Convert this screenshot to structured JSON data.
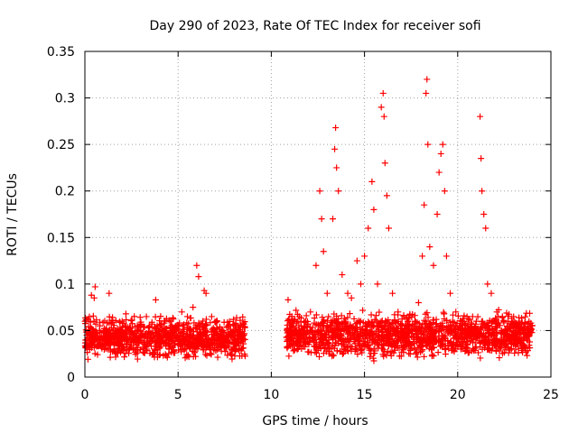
{
  "colors": {
    "series": "#ff0000",
    "grid": "#a0a0a0",
    "axis": "#000000"
  },
  "chart_data": {
    "type": "scatter",
    "title": "Day 290 of 2023, Rate Of TEC Index for receiver sofi",
    "xlabel": "GPS time / hours",
    "ylabel": "ROTI / TECUs",
    "xlim": [
      0,
      25
    ],
    "ylim": [
      0,
      0.35
    ],
    "xticks": [
      0,
      5,
      10,
      15,
      20,
      25
    ],
    "xtick_labels": [
      "0",
      "5",
      "10",
      "15",
      "20",
      "25"
    ],
    "yticks": [
      0,
      0.05,
      0.1,
      0.15,
      0.2,
      0.25,
      0.3,
      0.35
    ],
    "ytick_labels": [
      "0",
      "0.05",
      "0.1",
      "0.15",
      "0.2",
      "0.25",
      "0.3",
      "0.35"
    ],
    "grid": true,
    "marker": "+",
    "series": [
      {
        "name": "ROTI",
        "points": [
          [
            0.1,
            0.045
          ],
          [
            0.3,
            0.06
          ],
          [
            0.35,
            0.088
          ],
          [
            0.5,
            0.085
          ],
          [
            0.55,
            0.097
          ],
          [
            0.8,
            0.055
          ],
          [
            1.0,
            0.042
          ],
          [
            1.3,
            0.09
          ],
          [
            1.5,
            0.05
          ],
          [
            1.8,
            0.035
          ],
          [
            2.0,
            0.06
          ],
          [
            2.2,
            0.068
          ],
          [
            2.5,
            0.04
          ],
          [
            2.8,
            0.05
          ],
          [
            3.0,
            0.055
          ],
          [
            3.3,
            0.065
          ],
          [
            3.5,
            0.045
          ],
          [
            3.8,
            0.083
          ],
          [
            4.0,
            0.05
          ],
          [
            4.3,
            0.06
          ],
          [
            4.6,
            0.045
          ],
          [
            4.9,
            0.055
          ],
          [
            5.2,
            0.07
          ],
          [
            5.5,
            0.065
          ],
          [
            5.8,
            0.075
          ],
          [
            6.0,
            0.12
          ],
          [
            6.1,
            0.108
          ],
          [
            6.4,
            0.093
          ],
          [
            6.5,
            0.09
          ],
          [
            6.8,
            0.065
          ],
          [
            7.1,
            0.06
          ],
          [
            7.4,
            0.05
          ],
          [
            7.7,
            0.055
          ],
          [
            8.0,
            0.05
          ],
          [
            8.3,
            0.045
          ],
          [
            8.5,
            0.04
          ],
          [
            10.9,
            0.083
          ],
          [
            11.2,
            0.06
          ],
          [
            11.5,
            0.065
          ],
          [
            11.8,
            0.05
          ],
          [
            12.1,
            0.07
          ],
          [
            12.4,
            0.12
          ],
          [
            12.6,
            0.2
          ],
          [
            12.7,
            0.17
          ],
          [
            12.8,
            0.135
          ],
          [
            13.0,
            0.09
          ],
          [
            13.3,
            0.17
          ],
          [
            13.4,
            0.245
          ],
          [
            13.45,
            0.268
          ],
          [
            13.5,
            0.225
          ],
          [
            13.6,
            0.2
          ],
          [
            13.8,
            0.11
          ],
          [
            14.1,
            0.09
          ],
          [
            14.3,
            0.085
          ],
          [
            14.6,
            0.125
          ],
          [
            14.8,
            0.1
          ],
          [
            15.0,
            0.13
          ],
          [
            15.2,
            0.16
          ],
          [
            15.4,
            0.21
          ],
          [
            15.5,
            0.18
          ],
          [
            15.7,
            0.1
          ],
          [
            15.9,
            0.29
          ],
          [
            16.0,
            0.305
          ],
          [
            16.05,
            0.28
          ],
          [
            16.1,
            0.23
          ],
          [
            16.2,
            0.195
          ],
          [
            16.3,
            0.16
          ],
          [
            16.5,
            0.09
          ],
          [
            16.8,
            0.07
          ],
          [
            17.1,
            0.065
          ],
          [
            17.4,
            0.055
          ],
          [
            17.7,
            0.06
          ],
          [
            17.9,
            0.08
          ],
          [
            18.1,
            0.13
          ],
          [
            18.2,
            0.185
          ],
          [
            18.3,
            0.305
          ],
          [
            18.35,
            0.32
          ],
          [
            18.4,
            0.25
          ],
          [
            18.5,
            0.14
          ],
          [
            18.7,
            0.12
          ],
          [
            18.9,
            0.175
          ],
          [
            19.0,
            0.22
          ],
          [
            19.1,
            0.24
          ],
          [
            19.2,
            0.25
          ],
          [
            19.3,
            0.2
          ],
          [
            19.4,
            0.13
          ],
          [
            19.6,
            0.09
          ],
          [
            19.9,
            0.07
          ],
          [
            20.2,
            0.06
          ],
          [
            20.5,
            0.065
          ],
          [
            20.8,
            0.065
          ],
          [
            21.0,
            0.06
          ],
          [
            21.2,
            0.28
          ],
          [
            21.25,
            0.235
          ],
          [
            21.3,
            0.2
          ],
          [
            21.4,
            0.175
          ],
          [
            21.5,
            0.16
          ],
          [
            21.6,
            0.1
          ],
          [
            21.8,
            0.09
          ],
          [
            22.1,
            0.07
          ],
          [
            22.4,
            0.065
          ],
          [
            22.7,
            0.06
          ],
          [
            23.0,
            0.065
          ],
          [
            23.3,
            0.06
          ],
          [
            23.6,
            0.058
          ],
          [
            23.9,
            0.05
          ]
        ],
        "dense_band": {
          "segments": [
            {
              "x_start": 0.0,
              "x_end": 8.6,
              "y_low": 0.015,
              "y_high": 0.07
            },
            {
              "x_start": 10.8,
              "x_end": 24.0,
              "y_low": 0.015,
              "y_high": 0.075
            }
          ]
        }
      }
    ]
  }
}
